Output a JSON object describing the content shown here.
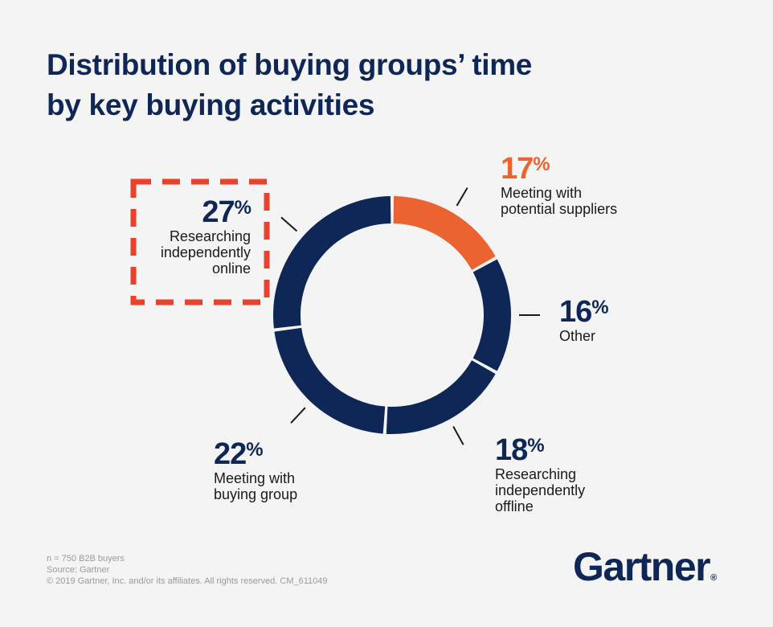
{
  "title_line1": "Distribution of buying groups’ time",
  "title_line2": "by key buying activities",
  "chart_data": {
    "type": "pie",
    "style": "donut",
    "title": "Distribution of buying groups’ time by key buying activities",
    "slices": [
      {
        "label_line1": "Meeting with",
        "label_line2": "potential suppliers",
        "label_line3": "",
        "value": 17,
        "display": "17",
        "color": "#ea6331"
      },
      {
        "label_line1": "Other",
        "label_line2": "",
        "label_line3": "",
        "value": 16,
        "display": "16",
        "color": "#0e2756"
      },
      {
        "label_line1": "Researching",
        "label_line2": "independently",
        "label_line3": "offline",
        "value": 18,
        "display": "18",
        "color": "#0e2756"
      },
      {
        "label_line1": "Meeting with",
        "label_line2": "buying group",
        "label_line3": "",
        "value": 22,
        "display": "22",
        "color": "#0e2756"
      },
      {
        "label_line1": "Researching",
        "label_line2": "independently",
        "label_line3": "online",
        "value": 27,
        "display": "27",
        "color": "#0e2756"
      }
    ],
    "highlight": "Researching independently online",
    "highlight_color": "#e9412b",
    "percent_sign": "%"
  },
  "footer": {
    "line1": "n = 750 B2B buyers",
    "line2": "Source: Gartner",
    "line3": "© 2019 Gartner, Inc. and/or its affiliates. All rights reserved. CM_611049"
  },
  "logo": {
    "text": "Gartner",
    "mark": "®"
  }
}
